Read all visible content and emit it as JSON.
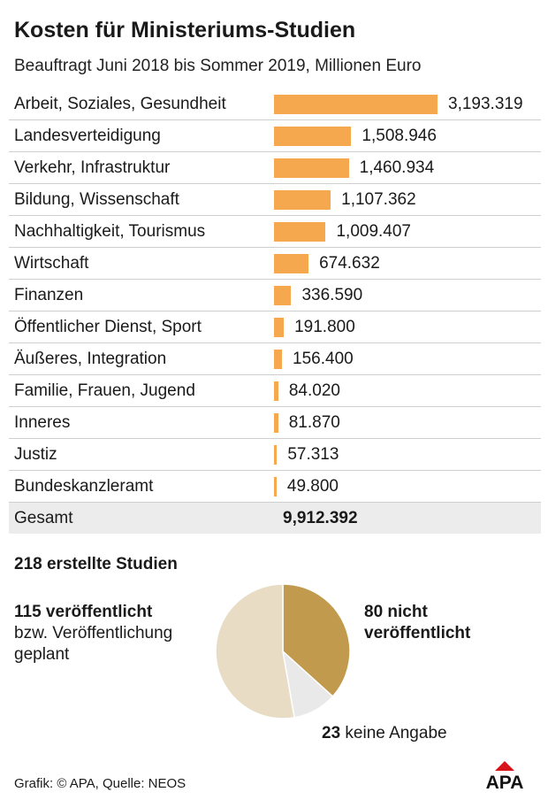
{
  "header": {
    "title": "Kosten für Ministeriums-Studien",
    "subtitle": "Beauftragt Juni 2018 bis Sommer 2019, Millionen Euro"
  },
  "chart_data": [
    {
      "type": "bar",
      "orientation": "horizontal",
      "title": "Kosten für Ministeriums-Studien",
      "subtitle": "Beauftragt Juni 2018 bis Sommer 2019, Millionen Euro",
      "bar_color": "#f5a84e",
      "categories": [
        "Arbeit, Soziales, Gesundheit",
        "Landesverteidigung",
        "Verkehr, Infrastruktur",
        "Bildung, Wissenschaft",
        "Nachhaltigkeit, Tourismus",
        "Wirtschaft",
        "Finanzen",
        "Öffentlicher Dienst, Sport",
        "Äußeres, Integration",
        "Familie, Frauen, Jugend",
        "Inneres",
        "Justiz",
        "Bundeskanzleramt"
      ],
      "values": [
        3193319,
        1508946,
        1460934,
        1107362,
        1009407,
        674632,
        336590,
        191800,
        156400,
        84020,
        81870,
        57313,
        49800
      ],
      "value_labels": [
        "3,193.319",
        "1,508.946",
        "1,460.934",
        "1,107.362",
        "1,009.407",
        "674.632",
        "336.590",
        "191.800",
        "156.400",
        "84.020",
        "81.870",
        "57.313",
        "49.800"
      ],
      "total": {
        "label": "Gesamt",
        "value": 9912392,
        "value_label": "9,912.392"
      }
    },
    {
      "type": "pie",
      "title": "218 erstellte Studien",
      "total": 218,
      "slices": [
        {
          "count": 80,
          "count_label": "80",
          "label": "nicht veröffentlicht",
          "color": "#c19a4e"
        },
        {
          "count": 23,
          "count_label": "23",
          "label": "keine Angabe",
          "color": "#e9e9e9"
        },
        {
          "count": 115,
          "count_label": "115 veröffentlicht",
          "label": "bzw. Veröffentlichung geplant",
          "color": "#e9dcc5"
        }
      ]
    }
  ],
  "pie_labels": {
    "left_bold": "115 veröffentlicht",
    "left_line2": "bzw. Veröffentlichung",
    "left_line3": "geplant",
    "right_line1": "80 nicht",
    "right_line2": "veröffentlicht",
    "bottom_bold": "23",
    "bottom_text": " keine Angabe"
  },
  "footer": {
    "credit": "Grafik: © APA, Quelle: NEOS",
    "logo_text": "APA"
  }
}
